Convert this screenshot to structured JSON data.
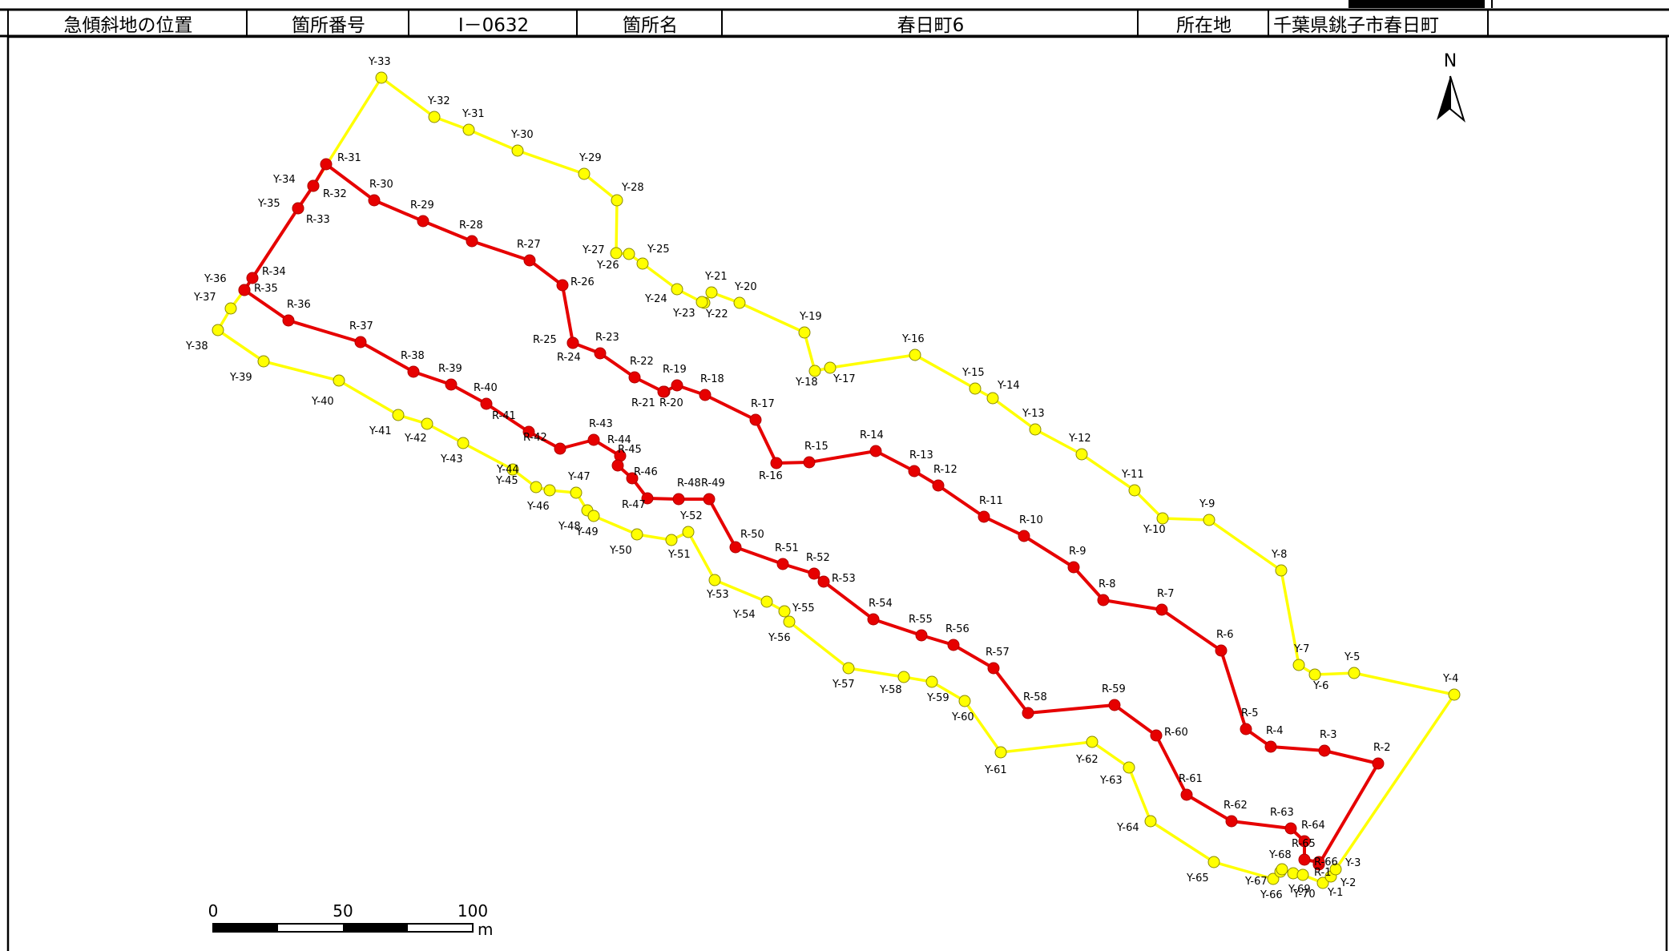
{
  "header": {
    "label_position": "急傾斜地の位置",
    "label_number": "箇所番号",
    "value_number": "I－0632",
    "label_name": "箇所名",
    "value_name": "春日町6",
    "label_location": "所在地",
    "value_location": "千葉県銚子市春日町"
  },
  "map": {
    "north_label": "N",
    "colors": {
      "red_line": "#e60000",
      "yellow_line": "#ffff00",
      "red_point": "#e60000",
      "yellow_point": "#ffff00"
    },
    "scale_bar": {
      "labels": [
        "0",
        "50",
        "100"
      ],
      "unit": "m"
    },
    "red_points": [
      "R-1",
      "R-2",
      "R-3",
      "R-4",
      "R-5",
      "R-6",
      "R-7",
      "R-8",
      "R-9",
      "R-10",
      "R-11",
      "R-12",
      "R-13",
      "R-14",
      "R-15",
      "R-16",
      "R-17",
      "R-18",
      "R-19",
      "R-20",
      "R-21",
      "R-22",
      "R-23",
      "R-24",
      "R-25",
      "R-26",
      "R-27",
      "R-28",
      "R-29",
      "R-30",
      "R-31",
      "R-32",
      "R-33",
      "R-34",
      "R-35",
      "R-36",
      "R-37",
      "R-38",
      "R-39",
      "R-40",
      "R-41",
      "R-42",
      "R-43",
      "R-44",
      "R-45",
      "R-46",
      "R-47",
      "R-48",
      "R-49",
      "R-50",
      "R-51",
      "R-52",
      "R-53",
      "R-54",
      "R-55",
      "R-56",
      "R-57",
      "R-58",
      "R-59",
      "R-60",
      "R-61",
      "R-62",
      "R-63",
      "R-64",
      "R-65",
      "R-66"
    ],
    "yellow_points": [
      "Y-1",
      "Y-2",
      "Y-3",
      "Y-4",
      "Y-5",
      "Y-6",
      "Y-7",
      "Y-8",
      "Y-9",
      "Y-10",
      "Y-11",
      "Y-12",
      "Y-13",
      "Y-14",
      "Y-15",
      "Y-16",
      "Y-17",
      "Y-18",
      "Y-19",
      "Y-20",
      "Y-21",
      "Y-22",
      "Y-23",
      "Y-24",
      "Y-25",
      "Y-26",
      "Y-27",
      "Y-28",
      "Y-29",
      "Y-30",
      "Y-31",
      "Y-32",
      "Y-33",
      "Y-34",
      "Y-35",
      "Y-36",
      "Y-37",
      "Y-38",
      "Y-39",
      "Y-40",
      "Y-41",
      "Y-42",
      "Y-43",
      "Y-44",
      "Y-45",
      "Y-46",
      "Y-47",
      "Y-48",
      "Y-49",
      "Y-50",
      "Y-51",
      "Y-52",
      "Y-53",
      "Y-54",
      "Y-55",
      "Y-56",
      "Y-57",
      "Y-58",
      "Y-59",
      "Y-60",
      "Y-61",
      "Y-62",
      "Y-63",
      "Y-64",
      "Y-65",
      "Y-66",
      "Y-67",
      "Y-68",
      "Y-69",
      "Y-70"
    ]
  }
}
